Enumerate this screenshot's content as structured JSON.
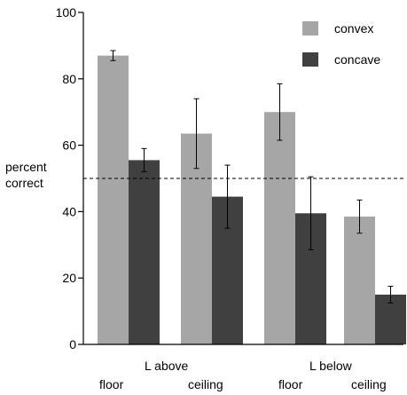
{
  "chart_data": {
    "type": "bar",
    "groups": [
      "L above",
      "L below"
    ],
    "categories": [
      "floor",
      "ceiling",
      "floor",
      "ceiling"
    ],
    "series": [
      {
        "name": "convex",
        "color": "#a6a6a6",
        "values": [
          87,
          63.5,
          70,
          38.5
        ],
        "error": [
          1.5,
          10.5,
          8.5,
          5
        ]
      },
      {
        "name": "concave",
        "color": "#404040",
        "values": [
          55.5,
          44.5,
          39.5,
          15
        ],
        "error": [
          3.5,
          9.5,
          11,
          2.5
        ]
      }
    ],
    "ylabel": [
      "percent",
      "correct"
    ],
    "ylim": [
      0,
      100
    ],
    "yticks": [
      0,
      20,
      40,
      60,
      80,
      100
    ],
    "reference_line": 50,
    "reference_style": "dashed",
    "legend_position": "top-right",
    "grid": false
  }
}
